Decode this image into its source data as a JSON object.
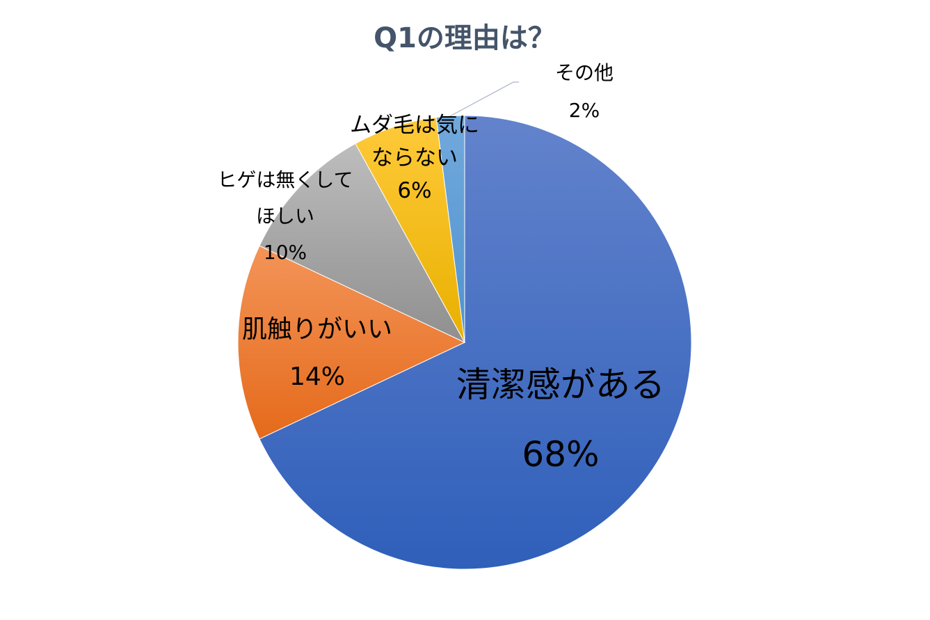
{
  "chart_data": {
    "type": "pie",
    "title": "Q1の理由は？",
    "slices": [
      {
        "label_lines": [
          "清潔感がある"
        ],
        "value_label": "68%",
        "value": 68,
        "color": "#4472c4"
      },
      {
        "label_lines": [
          "肌触りがいい"
        ],
        "value_label": "14%",
        "value": 14,
        "color": "#ed7d31"
      },
      {
        "label_lines": [
          "ヒゲは無くして",
          "ほしい"
        ],
        "value_label": "10%",
        "value": 10,
        "color": "#a5a5a5"
      },
      {
        "label_lines": [
          "ムダ毛は気に",
          "ならない"
        ],
        "value_label": "6%",
        "value": 6,
        "color": "#ffc000"
      },
      {
        "label_lines": [
          "その他"
        ],
        "value_label": "2%",
        "value": 2,
        "color": "#5b9bd5"
      }
    ],
    "start_angle_deg": 0,
    "direction": "clockwise",
    "legend": "none"
  }
}
